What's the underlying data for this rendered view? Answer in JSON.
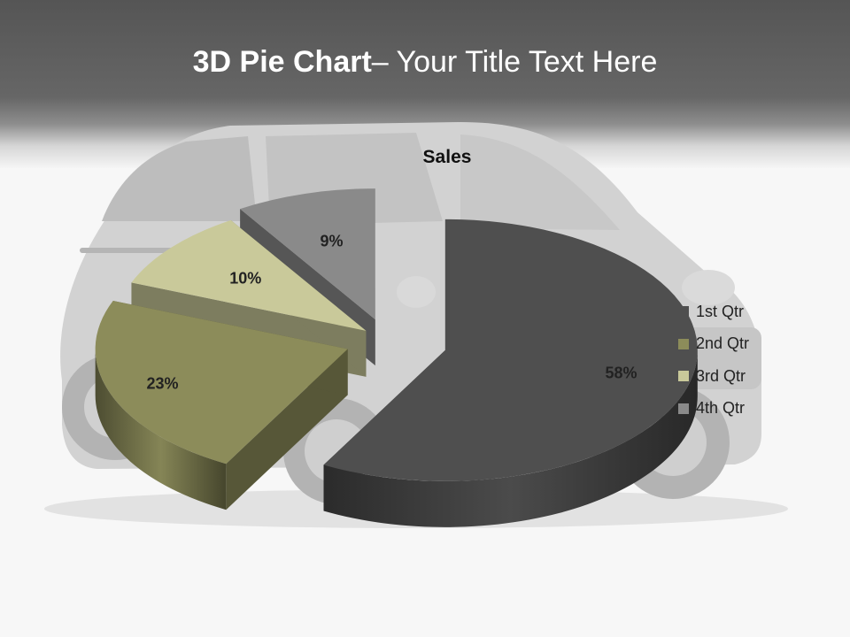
{
  "slide": {
    "title_bold": "3D Pie Chart",
    "title_rest": "– Your Title Text Here",
    "background_image": "suv-car-photo"
  },
  "colors": {
    "header_dark": "#555555",
    "background": "#f7f7f7"
  },
  "chart_data": {
    "type": "pie",
    "title": "Sales",
    "legend_position": "right",
    "exploded": true,
    "three_d": true,
    "categories": [
      "1st Qtr",
      "2nd Qtr",
      "3rd Qtr",
      "4th Qtr"
    ],
    "values": [
      58,
      23,
      10,
      9
    ],
    "labels": [
      "58%",
      "23%",
      "10%",
      "9%"
    ],
    "colors": [
      "#4f4f4f",
      "#8c8c5a",
      "#c9c99a",
      "#8a8a8a"
    ]
  }
}
